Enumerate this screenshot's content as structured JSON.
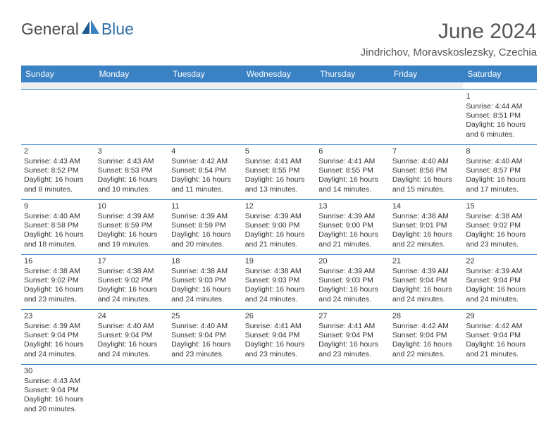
{
  "brand": {
    "part1": "General",
    "part2": "Blue"
  },
  "title": "June 2024",
  "location": "Jindrichov, Moravskoslezsky, Czechia",
  "colors": {
    "header_bg": "#3a82c4",
    "header_text": "#ffffff",
    "brand_gray": "#4a4a4a",
    "brand_blue": "#2f6fa8",
    "rule": "#3a82c4",
    "spacer_bg": "#f0f0f0",
    "text": "#333333"
  },
  "weekdays": [
    "Sunday",
    "Monday",
    "Tuesday",
    "Wednesday",
    "Thursday",
    "Friday",
    "Saturday"
  ],
  "weeks": [
    [
      null,
      null,
      null,
      null,
      null,
      null,
      {
        "n": "1",
        "sr": "4:44 AM",
        "ss": "8:51 PM",
        "dl": "16 hours and 6 minutes."
      }
    ],
    [
      {
        "n": "2",
        "sr": "4:43 AM",
        "ss": "8:52 PM",
        "dl": "16 hours and 8 minutes."
      },
      {
        "n": "3",
        "sr": "4:43 AM",
        "ss": "8:53 PM",
        "dl": "16 hours and 10 minutes."
      },
      {
        "n": "4",
        "sr": "4:42 AM",
        "ss": "8:54 PM",
        "dl": "16 hours and 11 minutes."
      },
      {
        "n": "5",
        "sr": "4:41 AM",
        "ss": "8:55 PM",
        "dl": "16 hours and 13 minutes."
      },
      {
        "n": "6",
        "sr": "4:41 AM",
        "ss": "8:55 PM",
        "dl": "16 hours and 14 minutes."
      },
      {
        "n": "7",
        "sr": "4:40 AM",
        "ss": "8:56 PM",
        "dl": "16 hours and 15 minutes."
      },
      {
        "n": "8",
        "sr": "4:40 AM",
        "ss": "8:57 PM",
        "dl": "16 hours and 17 minutes."
      }
    ],
    [
      {
        "n": "9",
        "sr": "4:40 AM",
        "ss": "8:58 PM",
        "dl": "16 hours and 18 minutes."
      },
      {
        "n": "10",
        "sr": "4:39 AM",
        "ss": "8:59 PM",
        "dl": "16 hours and 19 minutes."
      },
      {
        "n": "11",
        "sr": "4:39 AM",
        "ss": "8:59 PM",
        "dl": "16 hours and 20 minutes."
      },
      {
        "n": "12",
        "sr": "4:39 AM",
        "ss": "9:00 PM",
        "dl": "16 hours and 21 minutes."
      },
      {
        "n": "13",
        "sr": "4:39 AM",
        "ss": "9:00 PM",
        "dl": "16 hours and 21 minutes."
      },
      {
        "n": "14",
        "sr": "4:38 AM",
        "ss": "9:01 PM",
        "dl": "16 hours and 22 minutes."
      },
      {
        "n": "15",
        "sr": "4:38 AM",
        "ss": "9:02 PM",
        "dl": "16 hours and 23 minutes."
      }
    ],
    [
      {
        "n": "16",
        "sr": "4:38 AM",
        "ss": "9:02 PM",
        "dl": "16 hours and 23 minutes."
      },
      {
        "n": "17",
        "sr": "4:38 AM",
        "ss": "9:02 PM",
        "dl": "16 hours and 24 minutes."
      },
      {
        "n": "18",
        "sr": "4:38 AM",
        "ss": "9:03 PM",
        "dl": "16 hours and 24 minutes."
      },
      {
        "n": "19",
        "sr": "4:38 AM",
        "ss": "9:03 PM",
        "dl": "16 hours and 24 minutes."
      },
      {
        "n": "20",
        "sr": "4:39 AM",
        "ss": "9:03 PM",
        "dl": "16 hours and 24 minutes."
      },
      {
        "n": "21",
        "sr": "4:39 AM",
        "ss": "9:04 PM",
        "dl": "16 hours and 24 minutes."
      },
      {
        "n": "22",
        "sr": "4:39 AM",
        "ss": "9:04 PM",
        "dl": "16 hours and 24 minutes."
      }
    ],
    [
      {
        "n": "23",
        "sr": "4:39 AM",
        "ss": "9:04 PM",
        "dl": "16 hours and 24 minutes."
      },
      {
        "n": "24",
        "sr": "4:40 AM",
        "ss": "9:04 PM",
        "dl": "16 hours and 24 minutes."
      },
      {
        "n": "25",
        "sr": "4:40 AM",
        "ss": "9:04 PM",
        "dl": "16 hours and 23 minutes."
      },
      {
        "n": "26",
        "sr": "4:41 AM",
        "ss": "9:04 PM",
        "dl": "16 hours and 23 minutes."
      },
      {
        "n": "27",
        "sr": "4:41 AM",
        "ss": "9:04 PM",
        "dl": "16 hours and 23 minutes."
      },
      {
        "n": "28",
        "sr": "4:42 AM",
        "ss": "9:04 PM",
        "dl": "16 hours and 22 minutes."
      },
      {
        "n": "29",
        "sr": "4:42 AM",
        "ss": "9:04 PM",
        "dl": "16 hours and 21 minutes."
      }
    ],
    [
      {
        "n": "30",
        "sr": "4:43 AM",
        "ss": "9:04 PM",
        "dl": "16 hours and 20 minutes."
      },
      null,
      null,
      null,
      null,
      null,
      null
    ]
  ],
  "labels": {
    "sunrise": "Sunrise:",
    "sunset": "Sunset:",
    "daylight": "Daylight:"
  }
}
